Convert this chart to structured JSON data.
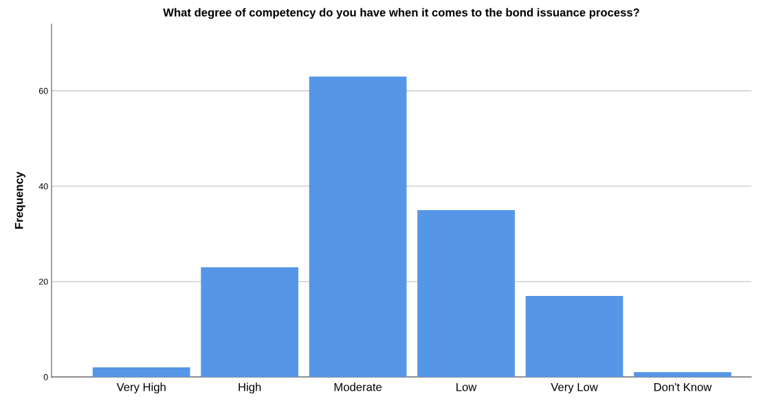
{
  "chart_data": {
    "type": "bar",
    "title": "What degree of competency do you have when it comes to the bond issuance process?",
    "ylabel": "Frequency",
    "categories": [
      "Very High",
      "High",
      "Moderate",
      "Low",
      "Very Low",
      "Don't Know"
    ],
    "values": [
      2,
      23,
      63,
      35,
      17,
      1
    ],
    "color": "#5596e6",
    "ylim": [
      0,
      74
    ],
    "yticks": [
      0,
      20,
      40,
      60
    ],
    "grid": "y"
  }
}
